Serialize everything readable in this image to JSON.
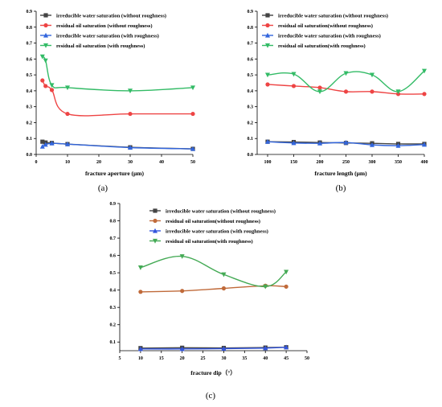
{
  "colors": {
    "black_series": "#444444",
    "red_series": "#ee4444",
    "blue_series": "#3366dd",
    "green_series": "#33bb66",
    "brown_series": "#c06a3a",
    "blue_series_c": "#3355dd",
    "green_series_c": "#44aa55"
  },
  "chart_data": [
    {
      "type": "line",
      "panel_label": "(a)",
      "xlabel": "fracture aperture (μm)",
      "ylabel": "",
      "xlim": [
        0,
        50
      ],
      "ylim": [
        0.0,
        0.9
      ],
      "xticks": [
        0,
        10,
        20,
        30,
        40,
        50
      ],
      "yticks": [
        0.0,
        0.1,
        0.2,
        0.3,
        0.4,
        0.5,
        0.6,
        0.7,
        0.8,
        0.9
      ],
      "grid": false,
      "legend_position": "top",
      "series": [
        {
          "name": "irreducible water saturation (without roughness)",
          "marker": "square",
          "color": "#444444",
          "x": [
            2,
            3,
            5,
            10,
            30,
            50
          ],
          "y": [
            0.08,
            0.075,
            0.072,
            0.065,
            0.045,
            0.035
          ]
        },
        {
          "name": "residual oil saturation (without roughness)",
          "marker": "circle",
          "color": "#ee4444",
          "x": [
            2,
            3,
            5,
            10,
            30,
            50
          ],
          "y": [
            0.465,
            0.43,
            0.405,
            0.255,
            0.255,
            0.255
          ]
        },
        {
          "name": "irreducible water saturation (with roughness)",
          "marker": "triangle-up",
          "color": "#3366dd",
          "x": [
            2,
            3,
            5,
            10,
            30,
            50
          ],
          "y": [
            0.05,
            0.062,
            0.07,
            0.065,
            0.043,
            0.035
          ]
        },
        {
          "name": "residual oil saturation (with roughness)",
          "marker": "triangle-down",
          "color": "#33bb66",
          "x": [
            2,
            3,
            5,
            10,
            30,
            50
          ],
          "y": [
            0.615,
            0.59,
            0.435,
            0.42,
            0.4,
            0.42
          ]
        }
      ]
    },
    {
      "type": "line",
      "panel_label": "(b)",
      "xlabel": "fracture length (μm)",
      "ylabel": "",
      "xlim": [
        80,
        400
      ],
      "ylim": [
        0.0,
        0.9
      ],
      "xticks": [
        100,
        150,
        200,
        250,
        300,
        350,
        400
      ],
      "yticks": [
        0.0,
        0.1,
        0.2,
        0.3,
        0.4,
        0.5,
        0.6,
        0.7,
        0.8,
        0.9
      ],
      "grid": false,
      "legend_position": "top",
      "series": [
        {
          "name": "irreducible water saturation (without roughness)",
          "marker": "square",
          "color": "#444444",
          "x": [
            100,
            150,
            200,
            250,
            300,
            350,
            400
          ],
          "y": [
            0.08,
            0.078,
            0.075,
            0.072,
            0.07,
            0.066,
            0.066
          ]
        },
        {
          "name": "residual oil saturation(without roughness)",
          "marker": "circle",
          "color": "#ee4444",
          "x": [
            100,
            150,
            200,
            250,
            300,
            350,
            400
          ],
          "y": [
            0.44,
            0.43,
            0.42,
            0.395,
            0.395,
            0.38,
            0.38
          ]
        },
        {
          "name": "irreducible water saturation (with roughness)",
          "marker": "triangle-up",
          "color": "#3366dd",
          "x": [
            100,
            150,
            200,
            250,
            300,
            350,
            400
          ],
          "y": [
            0.08,
            0.072,
            0.07,
            0.075,
            0.06,
            0.055,
            0.062
          ]
        },
        {
          "name": "residual oil saturation(with roughness)",
          "marker": "triangle-down",
          "color": "#33bb66",
          "x": [
            100,
            150,
            200,
            250,
            300,
            350,
            400
          ],
          "y": [
            0.5,
            0.505,
            0.395,
            0.51,
            0.5,
            0.395,
            0.525
          ]
        }
      ]
    },
    {
      "type": "line",
      "panel_label": "(c)",
      "xlabel": "fracture dip（°）",
      "ylabel": "",
      "xlim": [
        5,
        50
      ],
      "ylim": [
        0.05,
        0.9
      ],
      "xticks": [
        5,
        10,
        15,
        20,
        25,
        30,
        35,
        40,
        45,
        50
      ],
      "yticks": [
        0.1,
        0.2,
        0.3,
        0.4,
        0.5,
        0.6,
        0.7,
        0.8,
        0.9
      ],
      "grid": false,
      "legend_position": "top",
      "series": [
        {
          "name": "irreducible water saturation (without roughness)",
          "marker": "square",
          "color": "#444444",
          "x": [
            10,
            20,
            30,
            40,
            45
          ],
          "y": [
            0.065,
            0.067,
            0.066,
            0.068,
            0.07
          ]
        },
        {
          "name": "residual oil saturation(without roughness)",
          "marker": "circle",
          "color": "#c06a3a",
          "x": [
            10,
            20,
            30,
            40,
            45
          ],
          "y": [
            0.39,
            0.395,
            0.41,
            0.425,
            0.42
          ]
        },
        {
          "name": "irreducible water saturation (with roughness)",
          "marker": "triangle-up",
          "color": "#3355dd",
          "x": [
            10,
            20,
            30,
            40,
            45
          ],
          "y": [
            0.06,
            0.06,
            0.062,
            0.065,
            0.07
          ]
        },
        {
          "name": "residual oil saturation(with roughness)",
          "marker": "triangle-down",
          "color": "#44aa55",
          "x": [
            10,
            20,
            30,
            40,
            45
          ],
          "y": [
            0.53,
            0.595,
            0.49,
            0.42,
            0.505
          ]
        }
      ]
    }
  ]
}
